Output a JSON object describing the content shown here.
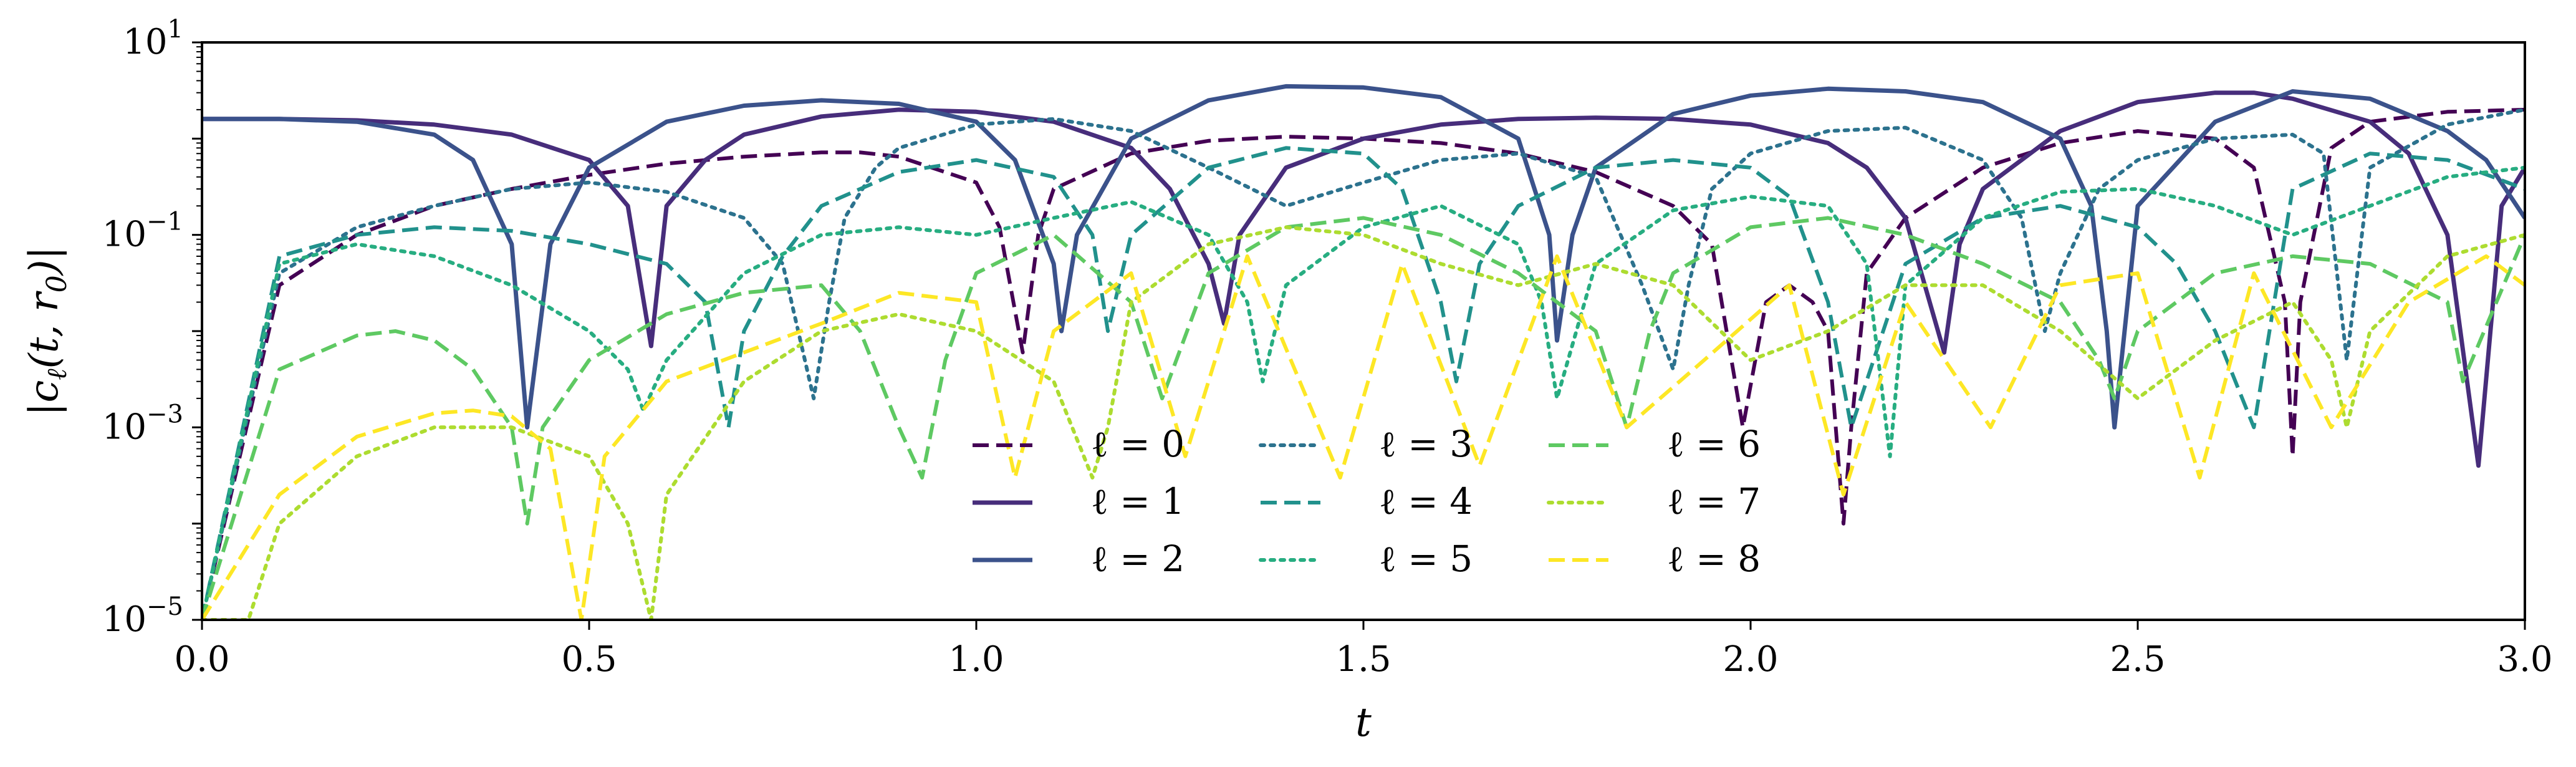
{
  "chart_data": {
    "type": "line",
    "title": "",
    "xlabel": "t",
    "ylabel": "|c_ℓ(t, r_0)|",
    "ylabel_parts": {
      "pre": "|c",
      "sub1": "ℓ",
      "mid": "(t, r",
      "sub2": "0",
      "post": ")|"
    },
    "xscale": "linear",
    "yscale": "log",
    "xlim": [
      0.0,
      3.0
    ],
    "ylim": [
      1e-05,
      10
    ],
    "xticks": [
      0.0,
      0.5,
      1.0,
      1.5,
      2.0,
      2.5,
      3.0
    ],
    "xtick_labels": [
      "0.0",
      "0.5",
      "1.0",
      "1.5",
      "2.0",
      "2.5",
      "3.0"
    ],
    "yticks": [
      {
        "value": 1e-05,
        "base": "10",
        "exp": "−5"
      },
      {
        "value": 0.001,
        "base": "10",
        "exp": "−3"
      },
      {
        "value": 0.1,
        "base": "10",
        "exp": "−1"
      },
      {
        "value": 10,
        "base": "10",
        "exp": "1"
      }
    ],
    "legend": {
      "placement": "lower-center",
      "columns": 3
    },
    "series": [
      {
        "name": "ℓ = 0",
        "color": "#440154",
        "style": "dashed",
        "x": [
          0.0,
          0.1,
          0.2,
          0.3,
          0.4,
          0.5,
          0.6,
          0.7,
          0.8,
          0.85,
          0.9,
          1.0,
          1.03,
          1.06,
          1.08,
          1.1,
          1.2,
          1.3,
          1.4,
          1.5,
          1.6,
          1.7,
          1.8,
          1.9,
          1.95,
          1.99,
          2.02,
          2.05,
          2.08,
          2.1,
          2.12,
          2.13,
          2.15,
          2.2,
          2.3,
          2.4,
          2.5,
          2.6,
          2.65,
          2.69,
          2.7,
          2.71,
          2.75,
          2.8,
          2.9,
          3.0
        ],
        "y": [
          1e-05,
          0.03,
          0.1,
          0.2,
          0.3,
          0.42,
          0.55,
          0.65,
          0.72,
          0.72,
          0.65,
          0.35,
          0.12,
          0.006,
          0.1,
          0.3,
          0.7,
          0.95,
          1.05,
          1.0,
          0.9,
          0.7,
          0.45,
          0.2,
          0.08,
          0.001,
          0.02,
          0.03,
          0.02,
          0.01,
          0.0001,
          0.001,
          0.04,
          0.15,
          0.5,
          0.9,
          1.2,
          1.0,
          0.5,
          0.02,
          0.0005,
          0.02,
          0.8,
          1.5,
          1.9,
          2.0
        ]
      },
      {
        "name": "ℓ = 1",
        "color": "#472d7b",
        "style": "solid",
        "x": [
          0.0,
          0.1,
          0.2,
          0.3,
          0.4,
          0.5,
          0.55,
          0.58,
          0.6,
          0.65,
          0.7,
          0.8,
          0.9,
          1.0,
          1.1,
          1.2,
          1.25,
          1.3,
          1.32,
          1.34,
          1.4,
          1.5,
          1.6,
          1.7,
          1.8,
          1.9,
          2.0,
          2.1,
          2.15,
          2.2,
          2.25,
          2.27,
          2.3,
          2.4,
          2.5,
          2.6,
          2.65,
          2.7,
          2.8,
          2.85,
          2.9,
          2.94,
          2.97,
          3.0
        ],
        "y": [
          1.6,
          1.6,
          1.55,
          1.4,
          1.1,
          0.6,
          0.2,
          0.007,
          0.2,
          0.6,
          1.1,
          1.7,
          2.0,
          1.9,
          1.5,
          0.8,
          0.3,
          0.05,
          0.012,
          0.1,
          0.5,
          1.0,
          1.4,
          1.6,
          1.65,
          1.6,
          1.4,
          0.9,
          0.5,
          0.15,
          0.006,
          0.08,
          0.3,
          1.2,
          2.4,
          3.0,
          3.0,
          2.6,
          1.5,
          0.7,
          0.1,
          0.0004,
          0.2,
          0.5
        ]
      },
      {
        "name": "ℓ = 2",
        "color": "#3b528b",
        "style": "solid",
        "x": [
          0.0,
          0.1,
          0.2,
          0.3,
          0.35,
          0.4,
          0.42,
          0.45,
          0.5,
          0.6,
          0.7,
          0.8,
          0.9,
          1.0,
          1.05,
          1.1,
          1.11,
          1.13,
          1.2,
          1.3,
          1.4,
          1.5,
          1.6,
          1.7,
          1.74,
          1.75,
          1.77,
          1.8,
          1.9,
          2.0,
          2.1,
          2.2,
          2.3,
          2.4,
          2.44,
          2.46,
          2.47,
          2.5,
          2.6,
          2.7,
          2.8,
          2.9,
          2.95,
          3.0
        ],
        "y": [
          1.6,
          1.6,
          1.5,
          1.1,
          0.6,
          0.08,
          0.001,
          0.08,
          0.5,
          1.5,
          2.2,
          2.5,
          2.3,
          1.5,
          0.6,
          0.05,
          0.01,
          0.1,
          1.0,
          2.5,
          3.5,
          3.4,
          2.7,
          1.0,
          0.1,
          0.008,
          0.1,
          0.5,
          1.8,
          2.8,
          3.3,
          3.1,
          2.4,
          1.0,
          0.2,
          0.01,
          0.001,
          0.2,
          1.5,
          3.1,
          2.6,
          1.2,
          0.6,
          0.15
        ]
      },
      {
        "name": "ℓ = 3",
        "color": "#2c728e",
        "style": "dotted",
        "x": [
          0.0,
          0.1,
          0.2,
          0.3,
          0.4,
          0.5,
          0.6,
          0.7,
          0.75,
          0.79,
          0.81,
          0.83,
          0.87,
          0.9,
          1.0,
          1.1,
          1.2,
          1.3,
          1.4,
          1.5,
          1.6,
          1.7,
          1.8,
          1.86,
          1.9,
          1.92,
          1.95,
          2.0,
          2.1,
          2.2,
          2.3,
          2.35,
          2.38,
          2.4,
          2.45,
          2.5,
          2.6,
          2.7,
          2.74,
          2.77,
          2.8,
          2.9,
          3.0
        ],
        "y": [
          1e-05,
          0.04,
          0.12,
          0.2,
          0.3,
          0.35,
          0.28,
          0.15,
          0.05,
          0.002,
          0.02,
          0.15,
          0.5,
          0.8,
          1.4,
          1.6,
          1.2,
          0.5,
          0.2,
          0.35,
          0.6,
          0.7,
          0.4,
          0.03,
          0.004,
          0.03,
          0.3,
          0.7,
          1.2,
          1.3,
          0.6,
          0.15,
          0.01,
          0.04,
          0.3,
          0.6,
          1.0,
          1.1,
          0.7,
          0.005,
          0.5,
          1.4,
          2.0
        ]
      },
      {
        "name": "ℓ = 4",
        "color": "#21918c",
        "style": "dashed",
        "x": [
          0.0,
          0.1,
          0.2,
          0.3,
          0.4,
          0.5,
          0.6,
          0.65,
          0.68,
          0.7,
          0.75,
          0.8,
          0.9,
          1.0,
          1.1,
          1.15,
          1.17,
          1.2,
          1.3,
          1.4,
          1.5,
          1.55,
          1.6,
          1.62,
          1.65,
          1.7,
          1.8,
          1.9,
          2.0,
          2.05,
          2.1,
          2.13,
          2.2,
          2.3,
          2.4,
          2.5,
          2.55,
          2.6,
          2.65,
          2.7,
          2.8,
          2.9,
          3.0
        ],
        "y": [
          1e-05,
          0.06,
          0.1,
          0.12,
          0.11,
          0.08,
          0.05,
          0.02,
          0.001,
          0.01,
          0.06,
          0.2,
          0.45,
          0.6,
          0.4,
          0.1,
          0.01,
          0.1,
          0.5,
          0.8,
          0.7,
          0.3,
          0.02,
          0.003,
          0.05,
          0.2,
          0.5,
          0.6,
          0.5,
          0.25,
          0.02,
          0.001,
          0.05,
          0.15,
          0.2,
          0.12,
          0.05,
          0.01,
          0.001,
          0.3,
          0.7,
          0.6,
          0.3
        ]
      },
      {
        "name": "ℓ = 5",
        "color": "#27ad81",
        "style": "dotted",
        "x": [
          0.0,
          0.1,
          0.2,
          0.3,
          0.4,
          0.5,
          0.55,
          0.57,
          0.6,
          0.7,
          0.8,
          0.9,
          1.0,
          1.1,
          1.2,
          1.3,
          1.35,
          1.37,
          1.4,
          1.5,
          1.6,
          1.7,
          1.73,
          1.75,
          1.8,
          1.9,
          2.0,
          2.1,
          2.15,
          2.18,
          2.2,
          2.3,
          2.4,
          2.5,
          2.6,
          2.7,
          2.8,
          2.9,
          3.0
        ],
        "y": [
          1e-05,
          0.05,
          0.08,
          0.06,
          0.03,
          0.01,
          0.004,
          0.0015,
          0.005,
          0.04,
          0.1,
          0.12,
          0.1,
          0.15,
          0.22,
          0.1,
          0.02,
          0.003,
          0.03,
          0.12,
          0.2,
          0.08,
          0.02,
          0.002,
          0.05,
          0.18,
          0.25,
          0.2,
          0.05,
          0.0005,
          0.03,
          0.15,
          0.28,
          0.3,
          0.2,
          0.1,
          0.2,
          0.4,
          0.5
        ]
      },
      {
        "name": "ℓ = 6",
        "color": "#5ec962",
        "style": "dashed",
        "x": [
          0.0,
          0.1,
          0.2,
          0.25,
          0.3,
          0.35,
          0.4,
          0.42,
          0.44,
          0.5,
          0.6,
          0.7,
          0.8,
          0.85,
          0.9,
          0.93,
          0.96,
          1.0,
          1.1,
          1.2,
          1.24,
          1.3,
          1.4,
          1.5,
          1.6,
          1.7,
          1.8,
          1.84,
          1.87,
          1.9,
          2.0,
          2.1,
          2.2,
          2.3,
          2.4,
          2.45,
          2.47,
          2.5,
          2.6,
          2.7,
          2.8,
          2.9,
          2.92,
          3.0
        ],
        "y": [
          1e-05,
          0.004,
          0.009,
          0.01,
          0.008,
          0.004,
          0.001,
          0.0001,
          0.001,
          0.005,
          0.015,
          0.025,
          0.03,
          0.01,
          0.001,
          0.0003,
          0.005,
          0.04,
          0.1,
          0.02,
          0.002,
          0.04,
          0.12,
          0.15,
          0.1,
          0.04,
          0.01,
          0.001,
          0.01,
          0.04,
          0.12,
          0.15,
          0.1,
          0.05,
          0.02,
          0.005,
          0.002,
          0.01,
          0.04,
          0.06,
          0.05,
          0.02,
          0.003,
          0.1
        ]
      },
      {
        "name": "ℓ = 7",
        "color": "#addc30",
        "style": "dotted",
        "x": [
          0.0,
          0.06,
          0.1,
          0.2,
          0.3,
          0.4,
          0.5,
          0.55,
          0.58,
          0.6,
          0.7,
          0.8,
          0.9,
          1.0,
          1.1,
          1.15,
          1.17,
          1.2,
          1.3,
          1.4,
          1.5,
          1.6,
          1.7,
          1.8,
          1.9,
          2.0,
          2.1,
          2.2,
          2.3,
          2.4,
          2.5,
          2.6,
          2.7,
          2.75,
          2.77,
          2.8,
          2.9,
          3.0
        ],
        "y": [
          1e-05,
          1e-05,
          0.0001,
          0.0005,
          0.001,
          0.001,
          0.0005,
          0.0001,
          1e-05,
          0.0002,
          0.003,
          0.01,
          0.015,
          0.01,
          0.003,
          0.0003,
          0.001,
          0.02,
          0.08,
          0.12,
          0.1,
          0.05,
          0.03,
          0.05,
          0.03,
          0.005,
          0.01,
          0.03,
          0.03,
          0.01,
          0.002,
          0.008,
          0.02,
          0.005,
          0.001,
          0.01,
          0.06,
          0.1
        ]
      },
      {
        "name": "ℓ = 8",
        "color": "#fde725",
        "style": "dashed",
        "x": [
          0.0,
          0.1,
          0.2,
          0.3,
          0.35,
          0.4,
          0.45,
          0.49,
          0.52,
          0.6,
          0.7,
          0.8,
          0.9,
          1.0,
          1.05,
          1.1,
          1.2,
          1.27,
          1.35,
          1.47,
          1.55,
          1.65,
          1.75,
          1.84,
          1.94,
          2.05,
          2.12,
          2.2,
          2.31,
          2.4,
          2.5,
          2.58,
          2.65,
          2.75,
          2.85,
          2.95,
          3.0
        ],
        "y": [
          1e-05,
          0.0002,
          0.0008,
          0.0014,
          0.0015,
          0.0013,
          0.0006,
          1e-05,
          0.0005,
          0.003,
          0.006,
          0.012,
          0.025,
          0.02,
          0.0003,
          0.01,
          0.04,
          0.0005,
          0.06,
          0.0003,
          0.05,
          0.0004,
          0.06,
          0.001,
          0.005,
          0.03,
          0.0002,
          0.02,
          0.001,
          0.03,
          0.04,
          0.0003,
          0.04,
          0.001,
          0.02,
          0.06,
          0.03
        ]
      }
    ]
  }
}
